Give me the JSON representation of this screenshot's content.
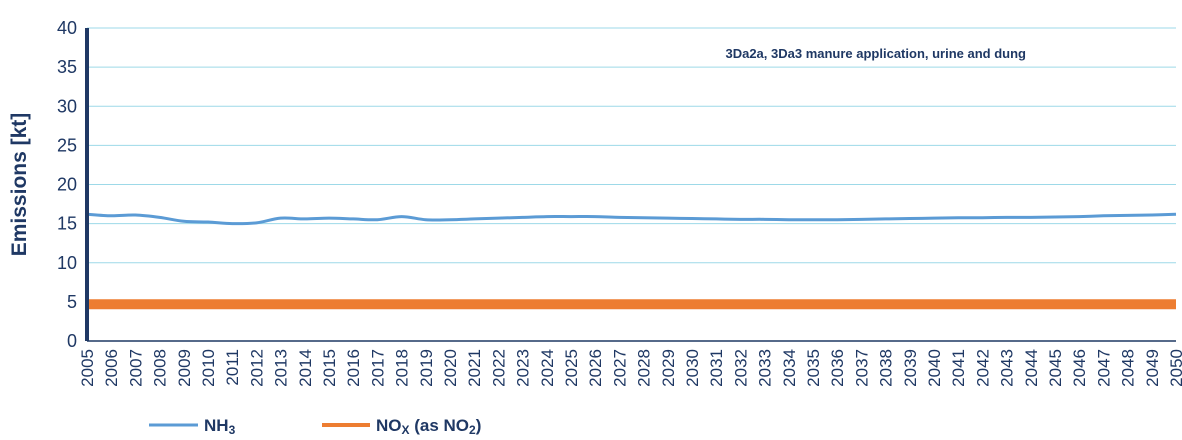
{
  "chart_data": {
    "type": "line",
    "title": "",
    "annotation": "3Da2a, 3Da3 manure application, urine and dung",
    "xlabel": "",
    "ylabel": "Emissions [kt]",
    "ylim": [
      0,
      40
    ],
    "yticks": [
      0,
      5,
      10,
      15,
      20,
      25,
      30,
      35,
      40
    ],
    "grid": true,
    "legend_position": "bottom-left",
    "x": [
      "2005",
      "2006",
      "2007",
      "2008",
      "2009",
      "2010",
      "2011",
      "2012",
      "2013",
      "2014",
      "2015",
      "2016",
      "2017",
      "2018",
      "2019",
      "2020",
      "2021",
      "2022",
      "2023",
      "2024",
      "2025",
      "2026",
      "2027",
      "2028",
      "2029",
      "2030",
      "2031",
      "2032",
      "2033",
      "2034",
      "2035",
      "2036",
      "2037",
      "2038",
      "2039",
      "2040",
      "2041",
      "2042",
      "2043",
      "2044",
      "2045",
      "2046",
      "2047",
      "2048",
      "2049",
      "2050"
    ],
    "series": [
      {
        "name": "NH",
        "name_sub": "3",
        "color": "#5b9bd5",
        "values": [
          16.2,
          16.0,
          16.1,
          15.8,
          15.3,
          15.2,
          15.0,
          15.1,
          15.7,
          15.6,
          15.7,
          15.6,
          15.5,
          15.9,
          15.5,
          15.5,
          15.6,
          15.7,
          15.8,
          15.9,
          15.9,
          15.9,
          15.8,
          15.75,
          15.7,
          15.65,
          15.6,
          15.55,
          15.55,
          15.5,
          15.5,
          15.5,
          15.55,
          15.6,
          15.65,
          15.7,
          15.75,
          15.75,
          15.8,
          15.8,
          15.85,
          15.9,
          16.0,
          16.05,
          16.1,
          16.2
        ]
      },
      {
        "name": "NO",
        "name_sub": "X",
        "name_suffix": " (as NO",
        "name_suffix_sub": "2",
        "name_end": ")",
        "color": "#ed7d31",
        "values": [
          4.7,
          4.7,
          4.7,
          4.7,
          4.7,
          4.7,
          4.7,
          4.7,
          4.7,
          4.7,
          4.7,
          4.7,
          4.7,
          4.7,
          4.7,
          4.7,
          4.7,
          4.7,
          4.7,
          4.7,
          4.7,
          4.7,
          4.7,
          4.7,
          4.7,
          4.7,
          4.7,
          4.7,
          4.7,
          4.7,
          4.7,
          4.7,
          4.7,
          4.7,
          4.7,
          4.7,
          4.7,
          4.7,
          4.7,
          4.7,
          4.7,
          4.7,
          4.7,
          4.7,
          4.7,
          4.7
        ]
      }
    ],
    "colors": {
      "grid": "#9dd9e8",
      "axis": "#1f3864",
      "text": "#1f3864"
    }
  }
}
